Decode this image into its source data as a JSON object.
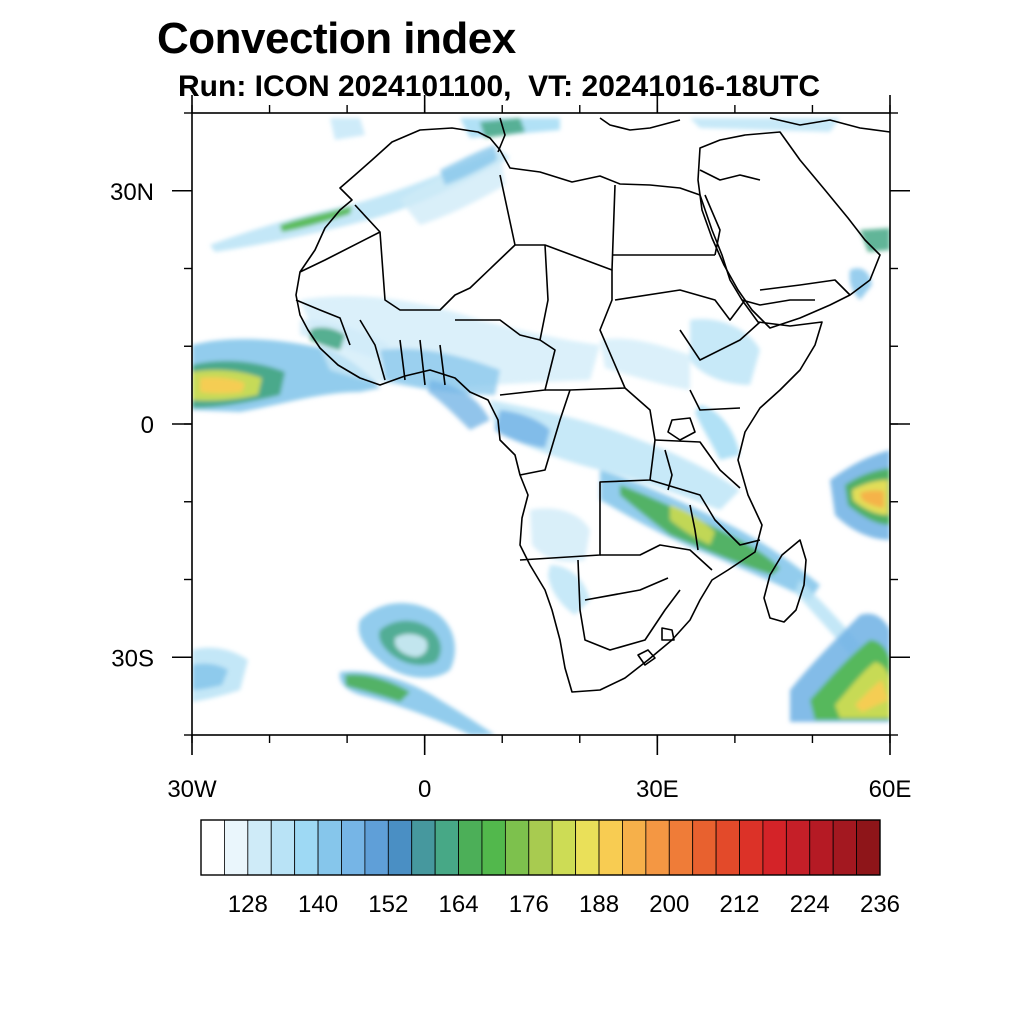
{
  "title": "Convection index",
  "subtitle": "Run: ICON 2024101100,  VT: 20241016-18UTC",
  "map": {
    "projection": "cylindrical-equidistant",
    "lon_range": [
      -30,
      60
    ],
    "lat_range": [
      -40,
      40
    ],
    "x_ticks": [
      {
        "lon": -30,
        "label": "30W"
      },
      {
        "lon": 0,
        "label": "0"
      },
      {
        "lon": 30,
        "label": "30E"
      },
      {
        "lon": 60,
        "label": "60E"
      }
    ],
    "y_ticks": [
      {
        "lat": 30,
        "label": "30N"
      },
      {
        "lat": 0,
        "label": "0"
      },
      {
        "lat": -30,
        "label": "30S"
      }
    ],
    "minor_lon_step": 10,
    "minor_lat_step": 10,
    "convection_regions": [
      {
        "name": "west-sahara-band",
        "lon": -20,
        "lat": 26,
        "level": 2
      },
      {
        "name": "atlantic-itcz-core",
        "lon": -27,
        "lat": 5,
        "level": 9
      },
      {
        "name": "gulf-of-guinea",
        "lon": 3,
        "lat": 6,
        "level": 3
      },
      {
        "name": "congo-basin",
        "lon": 20,
        "lat": 0,
        "level": 2
      },
      {
        "name": "mozambique-channel-band",
        "lon": 36,
        "lat": -15,
        "level": 6
      },
      {
        "name": "madagascar-east",
        "lon": 57,
        "lat": -10,
        "level": 10
      },
      {
        "name": "southern-indian-ocean",
        "lon": 56,
        "lat": -34,
        "level": 9
      },
      {
        "name": "south-atlantic-swirl",
        "lon": -4,
        "lat": -29,
        "level": 4
      },
      {
        "name": "south-atlantic-band",
        "lon": -6,
        "lat": -36,
        "level": 6
      }
    ]
  },
  "colorbar": {
    "colors": [
      "#ffffff",
      "#eaf6fc",
      "#cfebf8",
      "#b9e3f6",
      "#9ed9f4",
      "#86c6eb",
      "#76b5e6",
      "#5f9fd8",
      "#4a8fc4",
      "#46989e",
      "#47a886",
      "#4caf58",
      "#52b84c",
      "#7dc14d",
      "#a8cb50",
      "#cddc55",
      "#eae059",
      "#f8cc52",
      "#f6b04a",
      "#f49743",
      "#ef7c38",
      "#e8612f",
      "#e34a2a",
      "#dc3228",
      "#d42328",
      "#c51f28",
      "#b51a24",
      "#a31820",
      "#8e1519"
    ],
    "labels": [
      "128",
      "140",
      "152",
      "164",
      "176",
      "188",
      "200",
      "212",
      "224",
      "236"
    ],
    "label_box_indices": [
      2,
      5,
      8,
      11,
      14,
      17,
      20,
      23,
      26,
      29
    ]
  }
}
